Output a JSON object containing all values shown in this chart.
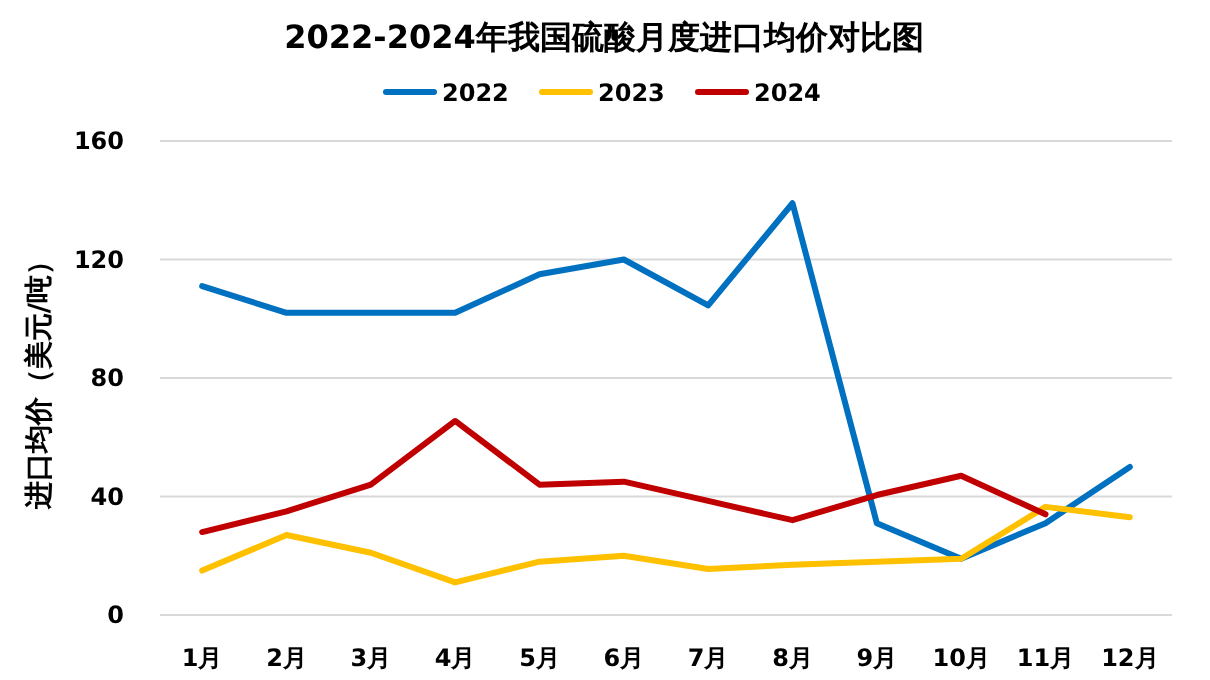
{
  "chart_data": {
    "type": "line",
    "title": "2022-2024年我国硫酸月度进口均价对比图",
    "ylabel": "进口均价（美元/吨）",
    "categories": [
      "1月",
      "2月",
      "3月",
      "4月",
      "5月",
      "6月",
      "7月",
      "8月",
      "9月",
      "10月",
      "11月",
      "12月"
    ],
    "series": [
      {
        "name": "2022",
        "color": "#0070c0",
        "values": [
          111,
          102,
          102,
          102,
          115,
          120,
          104.5,
          139,
          31,
          19,
          31,
          50
        ]
      },
      {
        "name": "2023",
        "color": "#ffc000",
        "values": [
          15,
          27,
          21,
          11,
          18,
          20,
          15.5,
          17,
          18,
          19,
          36.5,
          33
        ]
      },
      {
        "name": "2024",
        "color": "#c00000",
        "values": [
          28,
          35,
          44,
          65.5,
          44,
          45,
          38.5,
          32,
          40.5,
          47,
          34,
          null
        ]
      }
    ],
    "ylim": [
      0,
      160
    ],
    "yticks": [
      0,
      40,
      80,
      120,
      160
    ],
    "grid": "y",
    "legend": "top"
  }
}
